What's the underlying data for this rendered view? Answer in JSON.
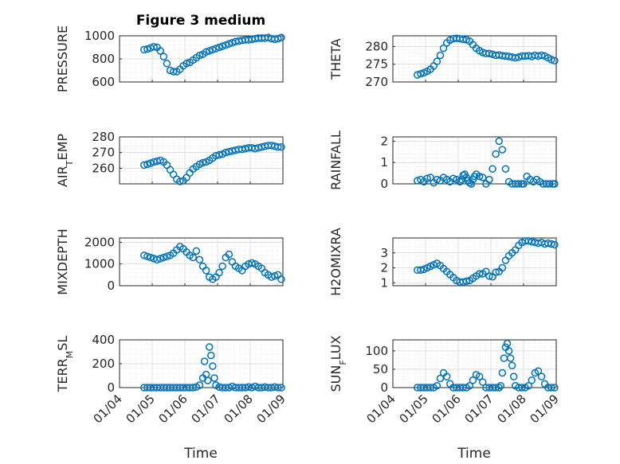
{
  "figure": {
    "title": "Figure 3 medium",
    "xlabel": "Time",
    "x_ticks": [
      "01/04",
      "01/05",
      "01/06",
      "01/07",
      "01/08",
      "01/09"
    ],
    "marker_color": "#0072bd"
  },
  "chart_data": [
    {
      "type": "scatter",
      "ylabel": "PRESSURE",
      "xlim": [
        0,
        5
      ],
      "ylim": [
        600,
        1000
      ],
      "yticks": [
        600,
        800,
        1000
      ],
      "x": [
        0.75,
        0.85,
        0.95,
        1.05,
        1.15,
        1.25,
        1.35,
        1.45,
        1.55,
        1.65,
        1.75,
        1.85,
        1.95,
        2.05,
        2.15,
        2.25,
        2.35,
        2.45,
        2.55,
        2.65,
        2.75,
        2.85,
        2.95,
        3.05,
        3.15,
        3.25,
        3.35,
        3.45,
        3.55,
        3.65,
        3.75,
        3.85,
        3.95,
        4.05,
        4.15,
        4.25,
        4.35,
        4.45,
        4.55,
        4.65,
        4.75,
        4.85,
        4.95
      ],
      "y": [
        880,
        885,
        895,
        905,
        900,
        870,
        820,
        760,
        700,
        690,
        690,
        710,
        740,
        760,
        770,
        790,
        810,
        830,
        840,
        860,
        870,
        880,
        890,
        900,
        910,
        920,
        930,
        940,
        950,
        955,
        960,
        965,
        965,
        970,
        975,
        980,
        980,
        980,
        985,
        975,
        970,
        975,
        985
      ]
    },
    {
      "type": "scatter",
      "ylabel": "THETA",
      "xlim": [
        0,
        5
      ],
      "ylim": [
        270,
        283
      ],
      "yticks": [
        270,
        275,
        280
      ],
      "x": [
        0.75,
        0.85,
        0.95,
        1.05,
        1.15,
        1.25,
        1.35,
        1.45,
        1.55,
        1.65,
        1.75,
        1.85,
        1.95,
        2.05,
        2.15,
        2.25,
        2.35,
        2.45,
        2.55,
        2.65,
        2.75,
        2.85,
        2.95,
        3.05,
        3.15,
        3.25,
        3.35,
        3.45,
        3.55,
        3.65,
        3.75,
        3.85,
        3.95,
        4.05,
        4.15,
        4.25,
        4.35,
        4.45,
        4.55,
        4.65,
        4.75,
        4.85,
        4.95
      ],
      "y": [
        272,
        272.3,
        272.6,
        273,
        273.6,
        274.5,
        275.8,
        277.5,
        279.5,
        281,
        281.8,
        282.2,
        282.3,
        282.2,
        282,
        281.9,
        281.5,
        280.5,
        279.5,
        278.8,
        278.3,
        278,
        278,
        277.8,
        277.5,
        277.6,
        277.4,
        277.3,
        277.2,
        277,
        276.8,
        277,
        277.3,
        277.3,
        277.4,
        277.2,
        277.5,
        277.3,
        277.5,
        277.3,
        276.8,
        276.3,
        276
      ]
    },
    {
      "type": "scatter",
      "ylabel": "AIR_TEMP",
      "xlim": [
        0,
        5
      ],
      "ylim": [
        250,
        280
      ],
      "yticks": [
        260,
        270,
        280
      ],
      "x": [
        0.75,
        0.85,
        0.95,
        1.05,
        1.15,
        1.25,
        1.35,
        1.45,
        1.55,
        1.65,
        1.75,
        1.85,
        1.95,
        2.05,
        2.15,
        2.25,
        2.35,
        2.45,
        2.55,
        2.65,
        2.75,
        2.85,
        2.95,
        3.05,
        3.15,
        3.25,
        3.35,
        3.45,
        3.55,
        3.65,
        3.75,
        3.85,
        3.95,
        4.05,
        4.15,
        4.25,
        4.35,
        4.45,
        4.55,
        4.65,
        4.75,
        4.85,
        4.95
      ],
      "y": [
        262,
        262.5,
        263.2,
        264,
        264.5,
        265,
        264,
        262,
        259,
        256,
        253,
        251.5,
        252,
        254,
        257,
        259.5,
        261,
        262.5,
        263.5,
        264,
        265,
        266.5,
        268,
        268.5,
        269,
        270,
        270.5,
        271,
        271.5,
        272,
        272,
        272.5,
        273,
        273,
        272.5,
        273,
        273.5,
        274,
        274.5,
        274.5,
        274,
        273.5,
        273.5
      ]
    },
    {
      "type": "scatter",
      "ylabel": "RAINFALL",
      "xlim": [
        0,
        5
      ],
      "ylim": [
        0,
        2.2
      ],
      "yticks": [
        0,
        1,
        2
      ],
      "x": [
        0.75,
        0.85,
        0.95,
        1.05,
        1.15,
        1.25,
        1.35,
        1.45,
        1.55,
        1.65,
        1.75,
        1.85,
        1.95,
        2.05,
        2.1,
        2.15,
        2.2,
        2.25,
        2.3,
        2.35,
        2.4,
        2.45,
        2.5,
        2.55,
        2.65,
        2.75,
        2.85,
        2.95,
        3.05,
        3.15,
        3.25,
        3.35,
        3.45,
        3.55,
        3.65,
        3.75,
        3.85,
        3.95,
        4.0,
        4.1,
        4.2,
        4.3,
        4.4,
        4.5,
        4.6,
        4.7,
        4.8,
        4.9,
        4.95
      ],
      "y": [
        0.15,
        0.2,
        0.1,
        0.25,
        0.3,
        0.05,
        0.2,
        0.15,
        0.3,
        0.2,
        0.1,
        0.25,
        0.2,
        0.1,
        0.2,
        0.4,
        0.45,
        0.3,
        0.15,
        0.05,
        0.0,
        0.2,
        0.35,
        0.45,
        0.35,
        0.3,
        0,
        0.2,
        0.7,
        1.4,
        2.0,
        1.6,
        0.7,
        0.1,
        0,
        0,
        0,
        0,
        0,
        0.35,
        0.2,
        0.1,
        0.2,
        0.1,
        0,
        0,
        0,
        0,
        0
      ]
    },
    {
      "type": "scatter",
      "ylabel": "MIXDEPTH",
      "xlim": [
        0,
        5
      ],
      "ylim": [
        0,
        2200
      ],
      "yticks": [
        0,
        1000,
        2000
      ],
      "x": [
        0.75,
        0.85,
        0.95,
        1.05,
        1.15,
        1.25,
        1.35,
        1.45,
        1.55,
        1.65,
        1.75,
        1.85,
        1.95,
        2.05,
        2.15,
        2.25,
        2.35,
        2.45,
        2.55,
        2.65,
        2.75,
        2.85,
        2.95,
        3.05,
        3.15,
        3.25,
        3.35,
        3.45,
        3.55,
        3.65,
        3.75,
        3.85,
        3.95,
        4.05,
        4.15,
        4.25,
        4.35,
        4.45,
        4.55,
        4.65,
        4.75,
        4.85,
        4.95
      ],
      "y": [
        1400,
        1350,
        1300,
        1250,
        1200,
        1250,
        1300,
        1350,
        1400,
        1500,
        1650,
        1800,
        1700,
        1550,
        1400,
        1300,
        1600,
        1200,
        900,
        700,
        400,
        300,
        400,
        600,
        900,
        1300,
        1450,
        1100,
        900,
        800,
        700,
        900,
        1000,
        1050,
        1000,
        900,
        800,
        600,
        500,
        400,
        450,
        500,
        300
      ]
    },
    {
      "type": "scatter",
      "ylabel": "H2OMIXRA",
      "xlim": [
        0,
        5
      ],
      "ylim": [
        0.8,
        4
      ],
      "yticks": [
        1,
        2,
        3
      ],
      "x": [
        0.75,
        0.85,
        0.95,
        1.05,
        1.15,
        1.25,
        1.35,
        1.45,
        1.55,
        1.65,
        1.75,
        1.85,
        1.95,
        2.05,
        2.15,
        2.25,
        2.35,
        2.45,
        2.55,
        2.65,
        2.75,
        2.85,
        2.95,
        3.05,
        3.15,
        3.25,
        3.35,
        3.45,
        3.55,
        3.65,
        3.75,
        3.85,
        3.95,
        4.05,
        4.15,
        4.25,
        4.35,
        4.45,
        4.55,
        4.65,
        4.75,
        4.85,
        4.95
      ],
      "y": [
        1.85,
        1.85,
        1.9,
        2,
        2.1,
        2.2,
        2.3,
        2.15,
        1.95,
        1.75,
        1.55,
        1.35,
        1.15,
        1.05,
        1.05,
        1.1,
        1.15,
        1.3,
        1.45,
        1.6,
        1.6,
        1.75,
        1.45,
        1.4,
        1.7,
        1.75,
        2,
        2.5,
        2.8,
        3,
        3.2,
        3.5,
        3.7,
        3.8,
        3.8,
        3.75,
        3.7,
        3.65,
        3.7,
        3.6,
        3.65,
        3.6,
        3.55
      ]
    },
    {
      "type": "scatter",
      "ylabel": "TERR_MSL",
      "xlim": [
        0,
        5
      ],
      "ylim": [
        0,
        400
      ],
      "yticks": [
        0,
        200,
        400
      ],
      "x": [
        0.75,
        0.85,
        0.95,
        1.05,
        1.15,
        1.25,
        1.35,
        1.45,
        1.55,
        1.65,
        1.75,
        1.85,
        1.95,
        2.05,
        2.15,
        2.25,
        2.35,
        2.45,
        2.55,
        2.6,
        2.65,
        2.7,
        2.75,
        2.8,
        2.85,
        2.9,
        2.95,
        3.05,
        3.15,
        3.25,
        3.35,
        3.45,
        3.55,
        3.65,
        3.75,
        3.85,
        3.95,
        4.05,
        4.15,
        4.25,
        4.35,
        4.45,
        4.55,
        4.65,
        4.75,
        4.85,
        4.95
      ],
      "y": [
        0,
        0,
        0,
        0,
        0,
        0,
        0,
        0,
        0,
        0,
        0,
        0,
        0,
        0,
        0,
        0,
        5,
        20,
        80,
        220,
        110,
        60,
        340,
        270,
        180,
        80,
        20,
        5,
        0,
        0,
        0,
        10,
        0,
        0,
        0,
        0,
        5,
        0,
        10,
        0,
        0,
        5,
        0,
        0,
        5,
        0,
        0
      ]
    },
    {
      "type": "scatter",
      "ylabel": "SUN_FLUX",
      "xlim": [
        0,
        5
      ],
      "ylim": [
        0,
        130
      ],
      "yticks": [
        0,
        50,
        100
      ],
      "x": [
        0.75,
        0.85,
        0.95,
        1.05,
        1.15,
        1.25,
        1.35,
        1.45,
        1.55,
        1.65,
        1.75,
        1.85,
        1.95,
        2.05,
        2.15,
        2.25,
        2.35,
        2.45,
        2.55,
        2.65,
        2.75,
        2.85,
        2.95,
        3.05,
        3.15,
        3.25,
        3.3,
        3.35,
        3.4,
        3.45,
        3.5,
        3.55,
        3.6,
        3.65,
        3.7,
        3.75,
        3.85,
        3.95,
        4.05,
        4.15,
        4.25,
        4.35,
        4.45,
        4.55,
        4.65,
        4.75,
        4.85,
        4.95
      ],
      "y": [
        0,
        0,
        0,
        0,
        0,
        0,
        5,
        25,
        40,
        30,
        10,
        0,
        0,
        0,
        0,
        0,
        5,
        20,
        35,
        30,
        15,
        0,
        0,
        0,
        0,
        0,
        5,
        40,
        80,
        110,
        120,
        100,
        80,
        60,
        30,
        5,
        0,
        0,
        0,
        5,
        20,
        40,
        45,
        30,
        10,
        0,
        0,
        0
      ]
    }
  ]
}
